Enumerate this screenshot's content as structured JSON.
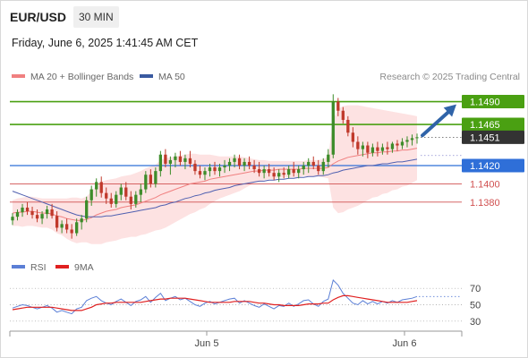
{
  "header": {
    "pair": "EUR/USD",
    "timeframe": "30 MIN",
    "datetime": "Friday, June 6, 2025 1:41:45 AM CET"
  },
  "legend": {
    "ma20": "MA 20 + Bollinger Bands",
    "ma50": "MA 50",
    "research": "Research © 2025 Trading Central"
  },
  "colors": {
    "up": "#3d8c2a",
    "down": "#c0392b",
    "resistance": "#4aa012",
    "target_up": "#4aa012",
    "support": "#2f6fd8",
    "support_minor": "#d05050",
    "ma20": "#f08080",
    "ma50": "#5060b0",
    "bands": "#fde2e2",
    "current": "#333333",
    "arrow": "#2f63a8",
    "rsi": "#5b7fd6",
    "rsi_ma": "#e02020"
  },
  "chart_data": [
    {
      "type": "candlestick",
      "y_range": [
        1.1325,
        1.1515
      ],
      "x_ticks": [
        "Jun 5",
        "Jun 6"
      ],
      "levels": [
        {
          "value": 1.149,
          "label": "1.1490",
          "kind": "resistance_target"
        },
        {
          "value": 1.1465,
          "label": "1.1465",
          "kind": "resistance"
        },
        {
          "value": 1.1451,
          "label": "1.1451",
          "kind": "current"
        },
        {
          "value": 1.142,
          "label": "1.1420",
          "kind": "pivot"
        },
        {
          "value": 1.14,
          "label": "1.1400",
          "kind": "support"
        },
        {
          "value": 1.138,
          "label": "1.1380",
          "kind": "support"
        }
      ],
      "candles": [
        [
          1.136,
          1.1368,
          1.1355,
          1.1364
        ],
        [
          1.1364,
          1.1372,
          1.136,
          1.1369
        ],
        [
          1.1369,
          1.1378,
          1.1364,
          1.1374
        ],
        [
          1.1374,
          1.138,
          1.1366,
          1.137
        ],
        [
          1.137,
          1.1375,
          1.1362,
          1.1366
        ],
        [
          1.1366,
          1.1372,
          1.1358,
          1.1362
        ],
        [
          1.1362,
          1.137,
          1.1356,
          1.1367
        ],
        [
          1.1367,
          1.1376,
          1.1362,
          1.1372
        ],
        [
          1.1372,
          1.1378,
          1.1362,
          1.1365
        ],
        [
          1.1365,
          1.137,
          1.1348,
          1.1352
        ],
        [
          1.1352,
          1.136,
          1.1346,
          1.1356
        ],
        [
          1.1356,
          1.1362,
          1.1346,
          1.135
        ],
        [
          1.135,
          1.1356,
          1.134,
          1.1346
        ],
        [
          1.1346,
          1.1362,
          1.1343,
          1.1358
        ],
        [
          1.1358,
          1.1366,
          1.135,
          1.1362
        ],
        [
          1.1362,
          1.1386,
          1.1358,
          1.1382
        ],
        [
          1.1382,
          1.1398,
          1.1376,
          1.1394
        ],
        [
          1.1394,
          1.1406,
          1.1386,
          1.1402
        ],
        [
          1.1402,
          1.1408,
          1.1385,
          1.139
        ],
        [
          1.139,
          1.1396,
          1.1378,
          1.1384
        ],
        [
          1.1384,
          1.139,
          1.1374,
          1.1378
        ],
        [
          1.1378,
          1.1392,
          1.1374,
          1.1388
        ],
        [
          1.1388,
          1.14,
          1.1382,
          1.1396
        ],
        [
          1.1396,
          1.1402,
          1.1382,
          1.1386
        ],
        [
          1.1386,
          1.1392,
          1.1372,
          1.1378
        ],
        [
          1.1378,
          1.1392,
          1.1374,
          1.1388
        ],
        [
          1.1388,
          1.14,
          1.138,
          1.1394
        ],
        [
          1.1394,
          1.1414,
          1.139,
          1.141
        ],
        [
          1.141,
          1.1416,
          1.1396,
          1.14
        ],
        [
          1.14,
          1.1418,
          1.1396,
          1.1414
        ],
        [
          1.1414,
          1.1436,
          1.1408,
          1.1432
        ],
        [
          1.1432,
          1.1438,
          1.1418,
          1.1422
        ],
        [
          1.1422,
          1.143,
          1.141,
          1.1426
        ],
        [
          1.1426,
          1.1434,
          1.1418,
          1.143
        ],
        [
          1.143,
          1.1436,
          1.142,
          1.1424
        ],
        [
          1.1424,
          1.1432,
          1.1416,
          1.1428
        ],
        [
          1.1428,
          1.1436,
          1.1418,
          1.1422
        ],
        [
          1.1422,
          1.1426,
          1.141,
          1.1414
        ],
        [
          1.1414,
          1.142,
          1.1406,
          1.141
        ],
        [
          1.141,
          1.1418,
          1.1404,
          1.1414
        ],
        [
          1.1414,
          1.1422,
          1.1408,
          1.1418
        ],
        [
          1.1418,
          1.1424,
          1.141,
          1.1414
        ],
        [
          1.1414,
          1.1422,
          1.1408,
          1.1418
        ],
        [
          1.1418,
          1.1426,
          1.1412,
          1.142
        ],
        [
          1.142,
          1.1428,
          1.1414,
          1.1424
        ],
        [
          1.1424,
          1.1432,
          1.1418,
          1.1428
        ],
        [
          1.1428,
          1.1432,
          1.1416,
          1.142
        ],
        [
          1.142,
          1.1428,
          1.1414,
          1.1424
        ],
        [
          1.1424,
          1.143,
          1.1416,
          1.142
        ],
        [
          1.142,
          1.1426,
          1.1412,
          1.1416
        ],
        [
          1.1416,
          1.1424,
          1.1408,
          1.1412
        ],
        [
          1.1412,
          1.142,
          1.1406,
          1.1416
        ],
        [
          1.1416,
          1.1422,
          1.1408,
          1.1412
        ],
        [
          1.1412,
          1.1418,
          1.1404,
          1.1408
        ],
        [
          1.1408,
          1.1416,
          1.1402,
          1.1412
        ],
        [
          1.1412,
          1.1418,
          1.1406,
          1.141
        ],
        [
          1.141,
          1.142,
          1.1406,
          1.1416
        ],
        [
          1.1416,
          1.1424,
          1.1408,
          1.1412
        ],
        [
          1.1412,
          1.142,
          1.1406,
          1.1416
        ],
        [
          1.1416,
          1.1424,
          1.141,
          1.142
        ],
        [
          1.142,
          1.1428,
          1.1412,
          1.1424
        ],
        [
          1.1424,
          1.143,
          1.1416,
          1.142
        ],
        [
          1.142,
          1.1426,
          1.141,
          1.1414
        ],
        [
          1.1414,
          1.1428,
          1.141,
          1.1424
        ],
        [
          1.1424,
          1.1438,
          1.1418,
          1.1432
        ],
        [
          1.1432,
          1.1498,
          1.1428,
          1.149
        ],
        [
          1.149,
          1.1494,
          1.1474,
          1.148
        ],
        [
          1.148,
          1.1484,
          1.1466,
          1.147
        ],
        [
          1.147,
          1.1474,
          1.1452,
          1.1456
        ],
        [
          1.1456,
          1.1462,
          1.144,
          1.1446
        ],
        [
          1.1446,
          1.1452,
          1.1432,
          1.1438
        ],
        [
          1.1438,
          1.1446,
          1.143,
          1.1442
        ],
        [
          1.1442,
          1.1446,
          1.1428,
          1.1434
        ],
        [
          1.1434,
          1.1444,
          1.143,
          1.144
        ],
        [
          1.144,
          1.1446,
          1.143,
          1.1436
        ],
        [
          1.1436,
          1.1444,
          1.1432,
          1.144
        ],
        [
          1.144,
          1.1446,
          1.1432,
          1.1438
        ],
        [
          1.1438,
          1.1446,
          1.1434,
          1.1444
        ],
        [
          1.1444,
          1.1448,
          1.1436,
          1.1442
        ],
        [
          1.1442,
          1.145,
          1.1438,
          1.1446
        ],
        [
          1.1446,
          1.1452,
          1.144,
          1.1448
        ],
        [
          1.1448,
          1.1454,
          1.1442,
          1.145
        ],
        [
          1.145,
          1.1455,
          1.1444,
          1.1451
        ]
      ],
      "ma20": [
        1.1368,
        1.1369,
        1.1369,
        1.137,
        1.137,
        1.1369,
        1.1368,
        1.1368,
        1.1367,
        1.1365,
        1.1364,
        1.1362,
        1.1361,
        1.136,
        1.136,
        1.1361,
        1.1363,
        1.1366,
        1.1368,
        1.137,
        1.1371,
        1.1372,
        1.1374,
        1.1375,
        1.1376,
        1.1377,
        1.1379,
        1.1381,
        1.1383,
        1.1385,
        1.1388,
        1.139,
        1.1392,
        1.1394,
        1.1396,
        1.1398,
        1.14,
        1.1401,
        1.1402,
        1.1403,
        1.1405,
        1.1406,
        1.1407,
        1.1408,
        1.1409,
        1.141,
        1.1411,
        1.1412,
        1.1413,
        1.1414,
        1.1414,
        1.1415,
        1.1415,
        1.1415,
        1.1416,
        1.1416,
        1.1416,
        1.1416,
        1.1416,
        1.1417,
        1.1417,
        1.1417,
        1.1417,
        1.1417,
        1.1418,
        1.1422,
        1.1425,
        1.1427,
        1.1429,
        1.143,
        1.1431,
        1.1432,
        1.1433,
        1.1434,
        1.1434,
        1.1435,
        1.1435,
        1.1436,
        1.1436,
        1.1437,
        1.1437,
        1.1438,
        1.1439
      ],
      "ma50": [
        1.1392,
        1.139,
        1.1388,
        1.1386,
        1.1384,
        1.1382,
        1.138,
        1.1378,
        1.1376,
        1.1374,
        1.1372,
        1.137,
        1.1368,
        1.1366,
        1.1365,
        1.1364,
        1.1364,
        1.1364,
        1.1364,
        1.1365,
        1.1365,
        1.1366,
        1.1367,
        1.1368,
        1.1369,
        1.137,
        1.1371,
        1.1372,
        1.1373,
        1.1374,
        1.1376,
        1.1377,
        1.1379,
        1.138,
        1.1382,
        1.1384,
        1.1385,
        1.1387,
        1.1388,
        1.139,
        1.1391,
        1.1393,
        1.1394,
        1.1395,
        1.1396,
        1.1398,
        1.1399,
        1.14,
        1.1401,
        1.1402,
        1.1403,
        1.1403,
        1.1404,
        1.1404,
        1.1405,
        1.1405,
        1.1406,
        1.1406,
        1.1407,
        1.1407,
        1.1408,
        1.1408,
        1.1409,
        1.1409,
        1.141,
        1.1412,
        1.1413,
        1.1415,
        1.1416,
        1.1417,
        1.1418,
        1.1419,
        1.142,
        1.142,
        1.1421,
        1.1422,
        1.1422,
        1.1423,
        1.1424,
        1.1424,
        1.1425,
        1.1426,
        1.1427
      ],
      "bb_upper": [
        1.1382,
        1.1384,
        1.1385,
        1.1386,
        1.1386,
        1.1385,
        1.1384,
        1.1384,
        1.1384,
        1.1384,
        1.1384,
        1.1384,
        1.1385,
        1.1385,
        1.1384,
        1.1386,
        1.1392,
        1.1398,
        1.1402,
        1.1404,
        1.1405,
        1.1406,
        1.1408,
        1.1409,
        1.141,
        1.1412,
        1.1414,
        1.1417,
        1.1419,
        1.1421,
        1.1426,
        1.1428,
        1.1429,
        1.143,
        1.1431,
        1.1432,
        1.1433,
        1.1433,
        1.1432,
        1.1432,
        1.1432,
        1.1431,
        1.143,
        1.143,
        1.143,
        1.143,
        1.143,
        1.1429,
        1.1428,
        1.1427,
        1.1426,
        1.1426,
        1.1425,
        1.1425,
        1.1425,
        1.1425,
        1.1425,
        1.1425,
        1.1425,
        1.1425,
        1.1426,
        1.1426,
        1.1426,
        1.1427,
        1.143,
        1.147,
        1.1482,
        1.1485,
        1.1486,
        1.1486,
        1.1486,
        1.1485,
        1.1484,
        1.1483,
        1.1482,
        1.1481,
        1.148,
        1.1479,
        1.1478,
        1.1477,
        1.1476,
        1.1475,
        1.1474
      ],
      "bb_lower": [
        1.1354,
        1.1354,
        1.1353,
        1.1354,
        1.1354,
        1.1353,
        1.1352,
        1.1352,
        1.135,
        1.1346,
        1.1344,
        1.134,
        1.1337,
        1.1335,
        1.1336,
        1.1336,
        1.1334,
        1.1334,
        1.1334,
        1.1336,
        1.1337,
        1.1338,
        1.134,
        1.1341,
        1.1342,
        1.1342,
        1.1344,
        1.1345,
        1.1347,
        1.1349,
        1.135,
        1.1352,
        1.1355,
        1.1358,
        1.1361,
        1.1364,
        1.1367,
        1.1369,
        1.1372,
        1.1374,
        1.1378,
        1.1381,
        1.1384,
        1.1386,
        1.1388,
        1.139,
        1.1392,
        1.1395,
        1.1398,
        1.1401,
        1.1402,
        1.1404,
        1.1405,
        1.1405,
        1.1407,
        1.1407,
        1.1407,
        1.1407,
        1.1407,
        1.1409,
        1.1408,
        1.1408,
        1.1408,
        1.1407,
        1.1406,
        1.1374,
        1.1368,
        1.1369,
        1.1372,
        1.1374,
        1.1376,
        1.1379,
        1.1382,
        1.1385,
        1.1386,
        1.1389,
        1.139,
        1.1393,
        1.1394,
        1.1397,
        1.1398,
        1.1401,
        1.1404
      ]
    },
    {
      "type": "line",
      "name": "RSI",
      "y_range": [
        20,
        80
      ],
      "y_ticks": [
        "70",
        "50",
        "30"
      ],
      "legend": [
        "RSI",
        "9MA"
      ],
      "rsi": [
        46,
        48,
        50,
        49,
        47,
        45,
        47,
        49,
        46,
        41,
        43,
        41,
        39,
        45,
        47,
        55,
        58,
        60,
        55,
        52,
        50,
        54,
        57,
        53,
        49,
        54,
        56,
        60,
        53,
        59,
        64,
        55,
        58,
        60,
        56,
        58,
        54,
        50,
        48,
        52,
        54,
        51,
        53,
        55,
        57,
        58,
        52,
        55,
        52,
        49,
        47,
        51,
        48,
        45,
        49,
        48,
        52,
        48,
        51,
        55,
        56,
        51,
        48,
        54,
        57,
        80,
        74,
        64,
        58,
        52,
        50,
        55,
        51,
        54,
        51,
        54,
        52,
        55,
        53,
        56,
        57,
        58,
        60
      ],
      "rsi_ma": [
        44,
        45,
        46,
        47,
        47,
        47,
        47,
        47,
        47,
        46,
        45,
        44,
        43,
        43,
        43,
        45,
        47,
        50,
        51,
        52,
        52,
        53,
        53,
        53,
        53,
        53,
        53,
        54,
        55,
        56,
        57,
        57,
        58,
        58,
        58,
        58,
        57,
        56,
        55,
        54,
        53,
        53,
        53,
        53,
        53,
        54,
        54,
        54,
        54,
        53,
        52,
        52,
        51,
        50,
        50,
        49,
        49,
        49,
        49,
        50,
        51,
        51,
        51,
        52,
        52,
        56,
        59,
        61,
        61,
        60,
        59,
        58,
        57,
        56,
        55,
        54,
        53,
        53,
        53,
        53,
        53,
        54,
        55
      ]
    }
  ]
}
